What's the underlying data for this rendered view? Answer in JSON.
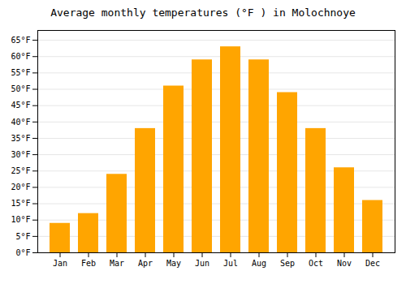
{
  "chart_data": {
    "type": "bar",
    "title": "Average monthly temperatures (°F ) in Molochnoye",
    "categories": [
      "Jan",
      "Feb",
      "Mar",
      "Apr",
      "May",
      "Jun",
      "Jul",
      "Aug",
      "Sep",
      "Oct",
      "Nov",
      "Dec"
    ],
    "values": [
      9,
      12,
      24,
      38,
      51,
      59,
      63,
      59,
      49,
      38,
      26,
      16
    ],
    "color": "#FFA500",
    "ylim": [
      0,
      68
    ],
    "yticks": [
      {
        "value": 0,
        "label": "0°F"
      },
      {
        "value": 5,
        "label": "5°F"
      },
      {
        "value": 10,
        "label": "10°F"
      },
      {
        "value": 15,
        "label": "15°F"
      },
      {
        "value": 20,
        "label": "20°F"
      },
      {
        "value": 25,
        "label": "25°F"
      },
      {
        "value": 30,
        "label": "30°F"
      },
      {
        "value": 35,
        "label": "35°F"
      },
      {
        "value": 40,
        "label": "40°F"
      },
      {
        "value": 45,
        "label": "45°F"
      },
      {
        "value": 50,
        "label": "50°F"
      },
      {
        "value": 55,
        "label": "55°F"
      },
      {
        "value": 60,
        "label": "60°F"
      },
      {
        "value": 65,
        "label": "65°F"
      }
    ],
    "grid": true
  }
}
